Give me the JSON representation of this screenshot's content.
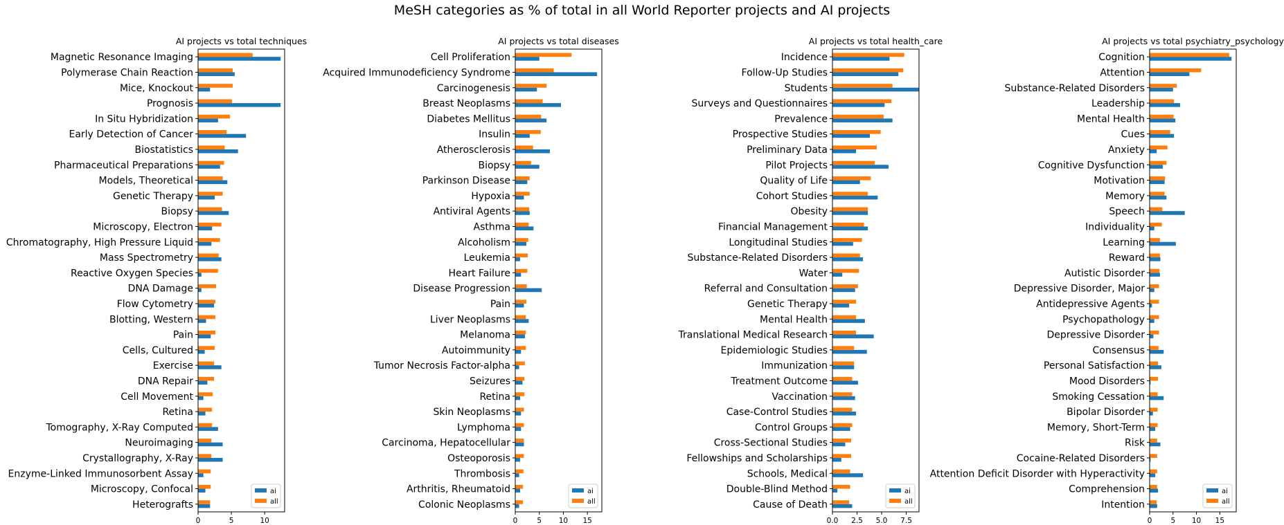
{
  "figure": {
    "title": "MeSH categories as % of total in all World Reporter projects and AI projects"
  },
  "colors": {
    "ai": "#1f77b4",
    "all": "#ff7f0e"
  },
  "chart_data": [
    {
      "type": "bar",
      "orientation": "horizontal",
      "title": "AI projects vs total techniques",
      "categories": [
        "Magnetic Resonance Imaging",
        "Polymerase Chain Reaction",
        "Mice, Knockout",
        "Prognosis",
        "In Situ Hybridization",
        "Early Detection of Cancer",
        "Biostatistics",
        "Pharmaceutical Preparations",
        "Models, Theoretical",
        "Genetic Therapy",
        "Biopsy",
        "Microscopy, Electron",
        "Chromatography, High Pressure Liquid",
        "Mass Spectrometry",
        "Reactive Oxygen Species",
        "DNA Damage",
        "Flow Cytometry",
        "Blotting, Western",
        "Pain",
        "Cells, Cultured",
        "Exercise",
        "DNA Repair",
        "Cell Movement",
        "Retina",
        "Tomography, X-Ray Computed",
        "Neuroimaging",
        "Crystallography, X-Ray",
        "Enzyme-Linked Immunosorbent Assay",
        "Microscopy, Confocal",
        "Heterografts"
      ],
      "series": [
        {
          "name": "ai",
          "values": [
            12.4,
            5.5,
            1.8,
            12.4,
            3.0,
            7.2,
            6.0,
            3.3,
            4.4,
            2.5,
            4.6,
            2.1,
            2.0,
            3.5,
            0.5,
            0.5,
            2.4,
            1.2,
            1.9,
            1.0,
            3.5,
            1.4,
            0.8,
            1.1,
            3.0,
            3.7,
            3.7,
            0.8,
            1.1,
            1.8
          ]
        },
        {
          "name": "all",
          "values": [
            8.2,
            5.2,
            5.2,
            5.1,
            4.8,
            4.3,
            4.0,
            3.9,
            3.7,
            3.7,
            3.6,
            3.5,
            3.3,
            3.1,
            3.0,
            2.7,
            2.6,
            2.6,
            2.6,
            2.5,
            2.4,
            2.4,
            2.2,
            2.1,
            2.1,
            2.0,
            2.0,
            1.9,
            1.9,
            1.8
          ]
        }
      ],
      "xticks": [
        "0",
        "5",
        "10"
      ],
      "xlim": [
        0,
        13
      ],
      "legend": [
        "ai",
        "all"
      ],
      "legend_position": "lower-right"
    },
    {
      "type": "bar",
      "orientation": "horizontal",
      "title": "AI projects vs total diseases",
      "categories": [
        "Cell Proliferation",
        "Acquired Immunodeficiency Syndrome",
        "Carcinogenesis",
        "Breast Neoplasms",
        "Diabetes Mellitus",
        "Insulin",
        "Atherosclerosis",
        "Biopsy",
        "Parkinson Disease",
        "Hypoxia",
        "Antiviral Agents",
        "Asthma",
        "Alcoholism",
        "Leukemia",
        "Heart Failure",
        "Disease Progression",
        "Pain",
        "Liver Neoplasms",
        "Melanoma",
        "Autoimmunity",
        "Tumor Necrosis Factor-alpha",
        "Seizures",
        "Retina",
        "Skin Neoplasms",
        "Lymphoma",
        "Carcinoma, Hepatocellular",
        "Osteoporosis",
        "Thrombosis",
        "Arthritis, Rheumatoid",
        "Colonic Neoplasms"
      ],
      "series": [
        {
          "name": "ai",
          "values": [
            5.0,
            17.0,
            4.5,
            9.5,
            6.5,
            3.0,
            7.2,
            5.0,
            2.5,
            1.8,
            3.0,
            3.8,
            2.3,
            1.0,
            1.2,
            5.5,
            1.8,
            2.8,
            2.0,
            1.2,
            0.8,
            1.5,
            1.0,
            1.2,
            1.2,
            1.8,
            1.0,
            0.8,
            1.0,
            0.8
          ]
        },
        {
          "name": "all",
          "values": [
            11.7,
            8.0,
            6.5,
            5.7,
            5.4,
            5.3,
            3.7,
            3.3,
            3.0,
            3.0,
            2.9,
            2.8,
            2.7,
            2.6,
            2.5,
            2.4,
            2.3,
            2.2,
            2.2,
            2.2,
            2.0,
            1.9,
            1.9,
            1.8,
            1.8,
            1.8,
            1.8,
            1.7,
            1.6,
            1.6
          ]
        }
      ],
      "xticks": [
        "0",
        "5",
        "10",
        "15"
      ],
      "xlim": [
        0,
        18
      ],
      "legend": [
        "ai",
        "all"
      ],
      "legend_position": "lower-right"
    },
    {
      "type": "bar",
      "orientation": "horizontal",
      "title": "AI projects vs total health_care",
      "categories": [
        "Incidence",
        "Follow-Up Studies",
        "Students",
        "Surveys and Questionnaires",
        "Prevalence",
        "Prospective Studies",
        "Preliminary Data",
        "Pilot Projects",
        "Quality of Life",
        "Cohort Studies",
        "Obesity",
        "Financial Management",
        "Longitudinal Studies",
        "Substance-Related Disorders",
        "Water",
        "Referral and Consultation",
        "Genetic Therapy",
        "Mental Health",
        "Translational Medical Research",
        "Epidemiologic Studies",
        "Immunization",
        "Treatment Outcome",
        "Vaccination",
        "Case-Control Studies",
        "Control Groups",
        "Cross-Sectional Studies",
        "Fellowships and Scholarships",
        "Schools, Medical",
        "Double-Blind Method",
        "Cause of Death"
      ],
      "series": [
        {
          "name": "ai",
          "values": [
            5.8,
            6.7,
            8.8,
            5.3,
            6.1,
            3.8,
            2.4,
            5.7,
            2.8,
            4.6,
            3.6,
            3.6,
            2.1,
            3.1,
            1.0,
            2.3,
            1.7,
            3.3,
            4.2,
            3.5,
            2.2,
            2.6,
            2.3,
            2.4,
            1.8,
            1.3,
            0.9,
            3.1,
            0.5,
            2.0
          ]
        },
        {
          "name": "all",
          "values": [
            7.3,
            7.2,
            6.1,
            6.0,
            5.2,
            4.9,
            4.5,
            4.3,
            3.9,
            3.6,
            3.6,
            3.2,
            3.0,
            2.8,
            2.7,
            2.6,
            2.4,
            2.4,
            2.4,
            2.2,
            2.2,
            2.0,
            2.0,
            2.0,
            2.0,
            1.9,
            1.9,
            1.8,
            1.8,
            1.7
          ]
        }
      ],
      "xticks": [
        "0.0",
        "2.5",
        "5.0",
        "7.5"
      ],
      "xlim": [
        0,
        8.8
      ],
      "legend": [
        "ai",
        "all"
      ],
      "legend_position": "lower-right"
    },
    {
      "type": "bar",
      "orientation": "horizontal",
      "title": "AI projects vs total psychiatry_psychology",
      "categories": [
        "Cognition",
        "Attention",
        "Substance-Related Disorders",
        "Leadership",
        "Mental Health",
        "Cues",
        "Anxiety",
        "Cognitive Dysfunction",
        "Motivation",
        "Memory",
        "Speech",
        "Individuality",
        "Learning",
        "Reward",
        "Autistic Disorder",
        "Depressive Disorder, Major",
        "Antidepressive Agents",
        "Psychopathology",
        "Depressive Disorder",
        "Consensus",
        "Personal Satisfaction",
        "Mood Disorders",
        "Smoking Cessation",
        "Bipolar Disorder",
        "Memory, Short-Term",
        "Risk",
        "Cocaine-Related Disorders",
        "Attention Deficit Disorder with Hyperactivity",
        "Comprehension",
        "Intention"
      ],
      "series": [
        {
          "name": "ai",
          "values": [
            17.5,
            8.5,
            5.0,
            6.5,
            5.5,
            5.2,
            1.5,
            2.8,
            3.2,
            3.6,
            7.5,
            1.0,
            5.6,
            2.3,
            2.2,
            1.0,
            0.5,
            1.0,
            0.8,
            3.0,
            2.5,
            0.2,
            3.0,
            0.7,
            1.2,
            2.3,
            0.2,
            1.2,
            1.8,
            1.6
          ]
        },
        {
          "name": "all",
          "values": [
            17.0,
            11.0,
            5.8,
            5.2,
            5.1,
            4.4,
            3.8,
            3.6,
            3.3,
            3.2,
            2.7,
            2.6,
            2.2,
            2.2,
            2.1,
            2.0,
            2.0,
            2.0,
            2.0,
            1.9,
            1.8,
            1.8,
            1.7,
            1.7,
            1.7,
            1.6,
            1.6,
            1.6,
            1.6,
            1.5
          ]
        }
      ],
      "xticks": [
        "0",
        "5",
        "10",
        "15"
      ],
      "xlim": [
        0,
        18.5
      ],
      "legend": [
        "ai",
        "all"
      ],
      "legend_position": "lower-right"
    }
  ]
}
